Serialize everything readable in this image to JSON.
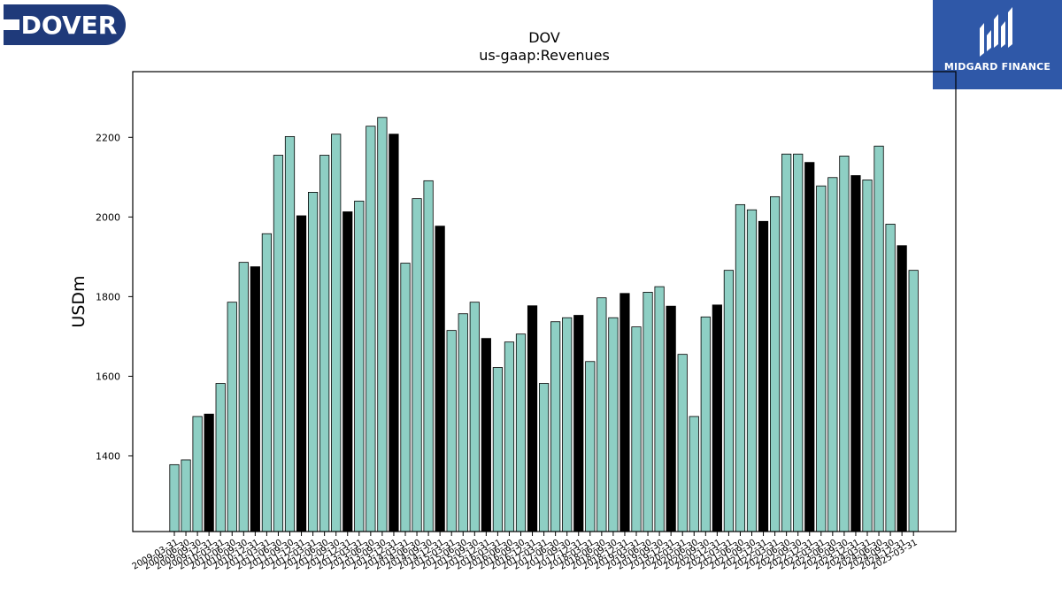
{
  "branding": {
    "company_logo_text": "DOVER",
    "company_logo_color": "#1f3a7a",
    "partner_logo_text": "MIDGARD FINANCE",
    "partner_logo_color": "#2f58a8"
  },
  "chart_data": {
    "type": "bar",
    "title": "DOV",
    "subtitle": "us-gaap:Revenues",
    "xlabel": "",
    "ylabel": "USDm",
    "ylim": [
      1210,
      2365
    ],
    "yticks": [
      1400,
      1600,
      1800,
      2000,
      2200
    ],
    "grid": false,
    "colors": {
      "quarter": "#8ecfc4",
      "q4": "#000000",
      "edge": "#000000"
    },
    "categories": [
      "2009-03-31",
      "2009-06-30",
      "2009-09-30",
      "2009-12-31",
      "2010-03-31",
      "2010-06-30",
      "2010-09-30",
      "2010-12-31",
      "2011-03-31",
      "2011-06-30",
      "2011-09-30",
      "2011-12-31",
      "2012-03-31",
      "2012-06-30",
      "2012-09-30",
      "2012-12-31",
      "2013-03-31",
      "2013-06-30",
      "2013-09-30",
      "2013-12-31",
      "2014-03-31",
      "2014-06-30",
      "2014-09-30",
      "2014-12-31",
      "2015-03-31",
      "2015-06-30",
      "2015-09-30",
      "2015-12-31",
      "2016-03-31",
      "2016-06-30",
      "2016-09-30",
      "2016-12-31",
      "2017-03-31",
      "2017-06-30",
      "2017-09-30",
      "2017-12-31",
      "2018-03-31",
      "2018-06-30",
      "2018-09-30",
      "2018-12-31",
      "2019-03-31",
      "2019-06-30",
      "2019-09-30",
      "2019-12-31",
      "2020-03-31",
      "2020-06-30",
      "2020-09-30",
      "2020-12-31",
      "2021-03-31",
      "2021-06-30",
      "2021-09-30",
      "2021-12-31",
      "2022-03-31",
      "2022-06-30",
      "2022-09-30",
      "2022-12-31",
      "2023-03-31",
      "2023-06-30",
      "2023-09-30",
      "2023-12-31",
      "2024-03-31",
      "2024-06-30",
      "2024-09-30",
      "2024-12-31",
      "2025-03-31"
    ],
    "values": [
      1378,
      1390,
      1499,
      1505,
      1582,
      1786,
      1886,
      1875,
      1958,
      2155,
      2202,
      2003,
      2062,
      2155,
      2208,
      2013,
      2040,
      2228,
      2250,
      2208,
      1884,
      2046,
      2091,
      1977,
      1715,
      1757,
      1786,
      1695,
      1622,
      1686,
      1706,
      1777,
      1582,
      1737,
      1747,
      1753,
      1637,
      1797,
      1747,
      1808,
      1724,
      1811,
      1825,
      1776,
      1655,
      1499,
      1749,
      1779,
      1866,
      2031,
      2018,
      1989,
      2051,
      2158,
      2158,
      2137,
      2078,
      2099,
      2153,
      2104,
      2093,
      2178,
      1982,
      1928,
      1866
    ]
  }
}
